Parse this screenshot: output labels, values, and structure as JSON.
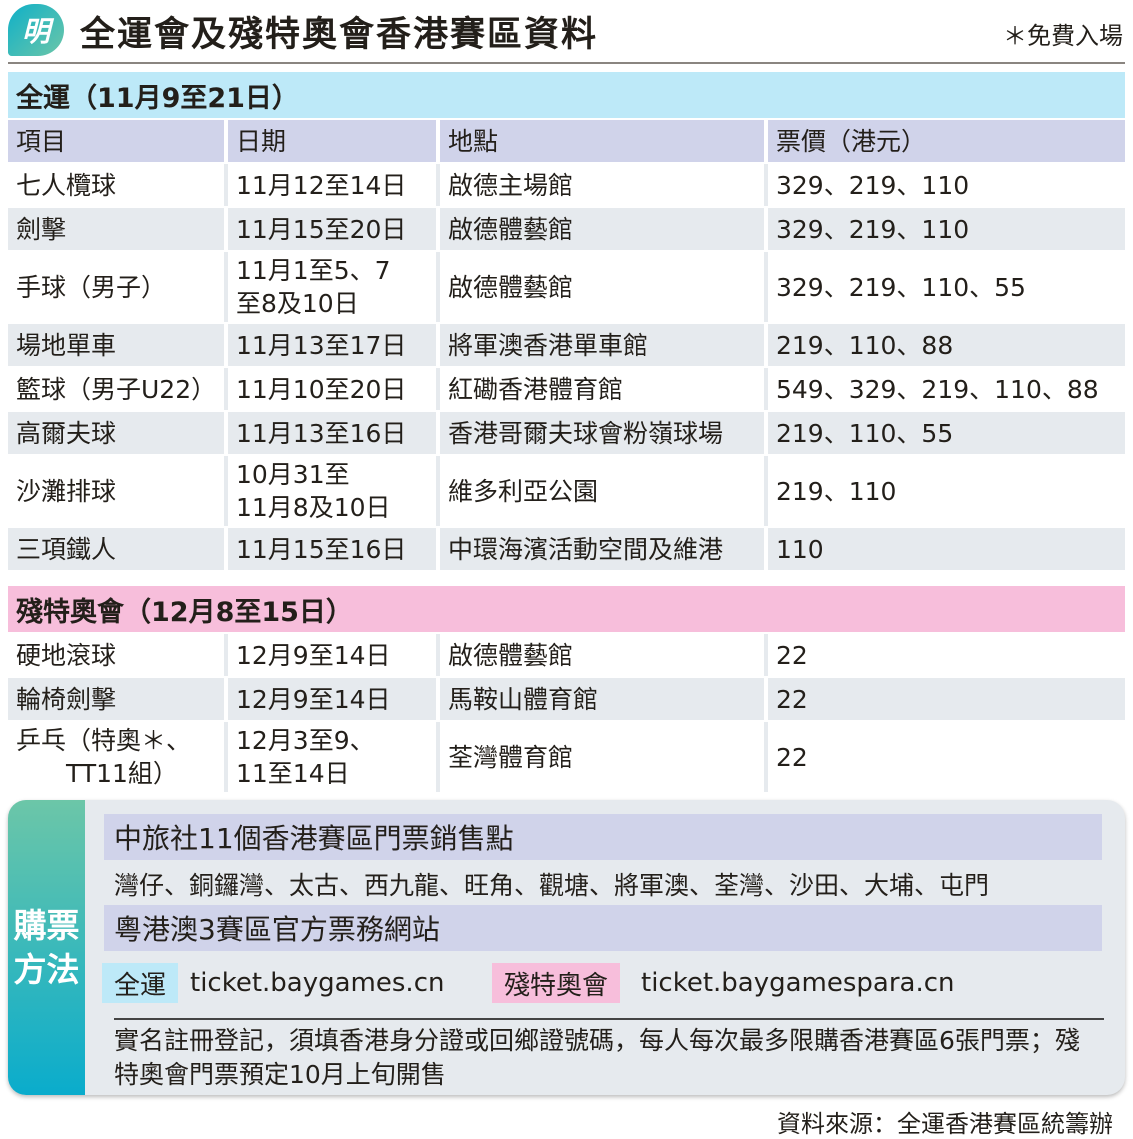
{
  "header": {
    "logo": "明",
    "title": "全運會及殘特奧會香港賽區資料",
    "note": "＊免費入場"
  },
  "columns": [
    "項目",
    "日期",
    "地點",
    "票價（港元）"
  ],
  "games": {
    "title": "全運（11月9至21日）",
    "color": "#bde9f8",
    "rows": [
      [
        "七人欖球",
        "11月12至14日",
        "啟德主場館",
        "329、219、110"
      ],
      [
        "劍擊",
        "11月15至20日",
        "啟德體藝館",
        "329、219、110"
      ],
      [
        "手球（男子）",
        "11月1至5、7\n至8及10日",
        "啟德體藝館",
        "329、219、110、55"
      ],
      [
        "場地單車",
        "11月13至17日",
        "將軍澳香港單車館",
        "219、110、88"
      ],
      [
        "籃球（男子U22）",
        "11月10至20日",
        "紅磡香港體育館",
        "549、329、219、110、88"
      ],
      [
        "高爾夫球",
        "11月13至16日",
        "香港哥爾夫球會粉嶺球場",
        "219、110、55"
      ],
      [
        "沙灘排球",
        "10月31至\n11月8及10日",
        "維多利亞公園",
        "219、110"
      ],
      [
        "三項鐵人",
        "11月15至16日",
        "中環海濱活動空間及維港",
        "110"
      ]
    ]
  },
  "para": {
    "title": "殘特奧會（12月8至15日）",
    "color": "#f7bedb",
    "rows": [
      [
        "硬地滾球",
        "12月9至14日",
        "啟德體藝館",
        "22"
      ],
      [
        "輪椅劍擊",
        "12月9至14日",
        "馬鞍山體育館",
        "22"
      ],
      [
        "乒乓（特奧＊、\n　　TT11組）",
        "12月3至9、\n11至14日",
        "荃灣體育館",
        "22"
      ]
    ]
  },
  "buy": {
    "label": "購票\n方法",
    "outlets_title": "中旅社11個香港賽區門票銷售點",
    "outlets": "灣仔、銅鑼灣、太古、西九龍、旺角、觀塘、將軍澳、荃灣、沙田、大埔、屯門",
    "web_title": "粵港澳3賽區官方票務網站",
    "games_tag": "全運",
    "games_url": "ticket.baygames.cn",
    "para_tag": "殘特奧會",
    "para_url": "ticket.baygamespara.cn",
    "note": "實名註冊登記，須填香港身分證或回鄉證號碼，每人每次最多限購香港賽區6張門票；殘特奧會門票預定10月上旬開售"
  },
  "source": "資料來源：全運香港賽區統籌辦"
}
